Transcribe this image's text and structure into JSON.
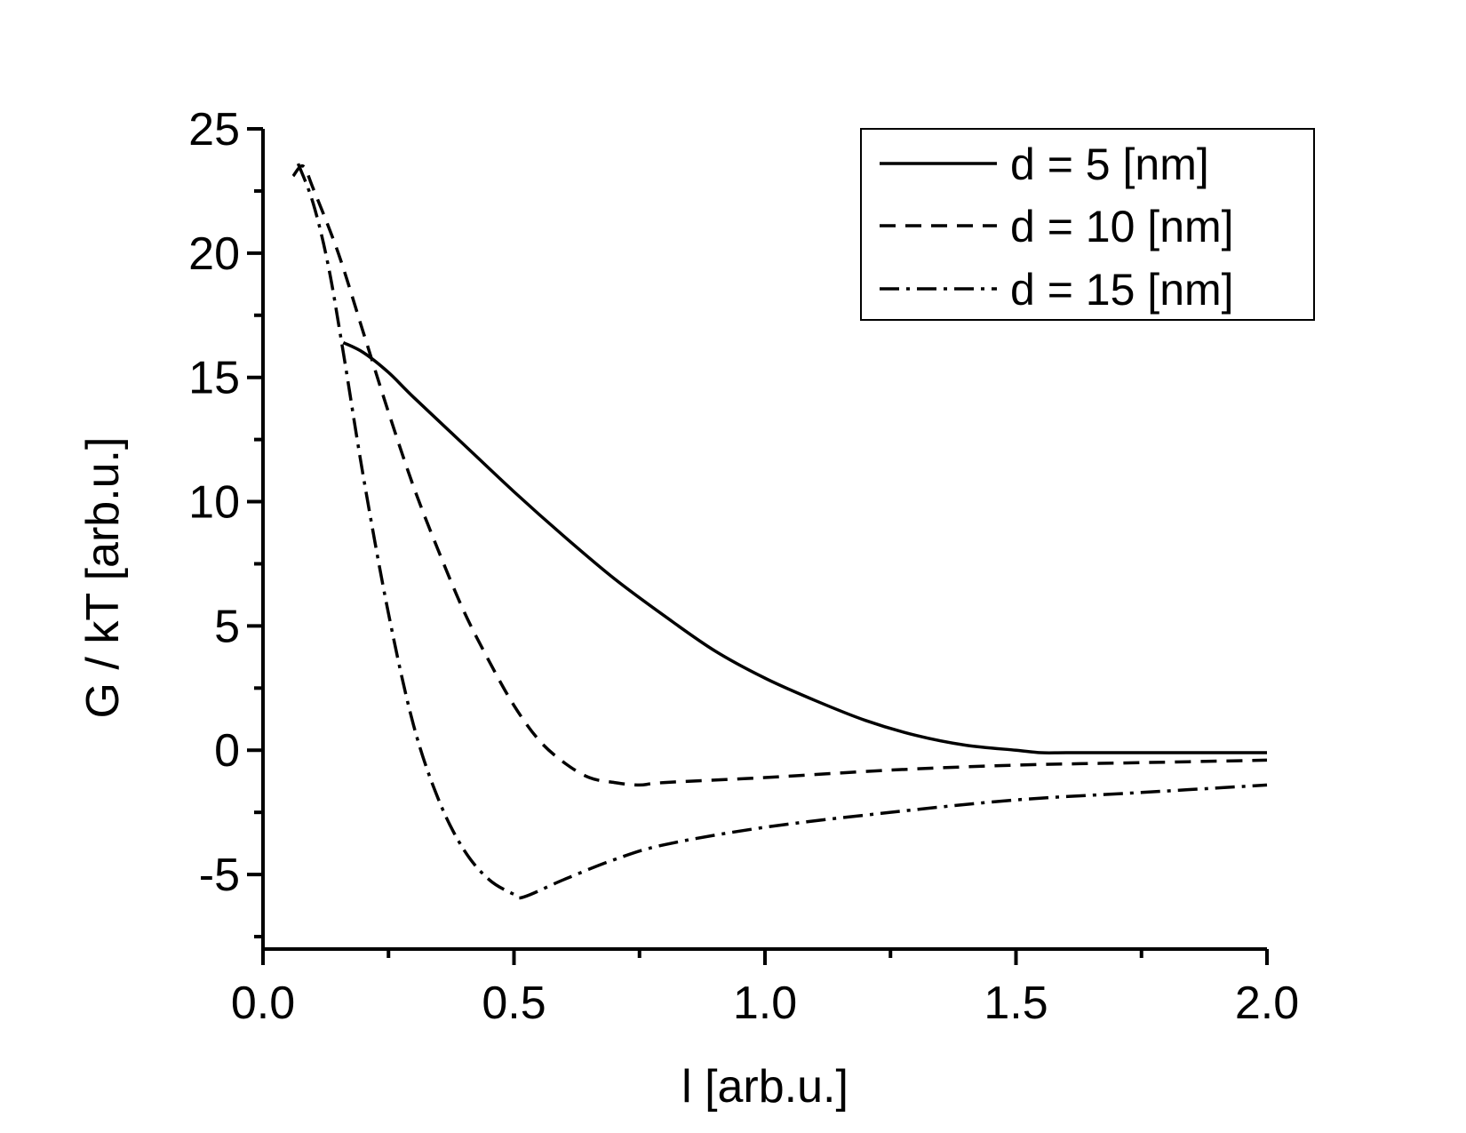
{
  "chart_data": {
    "type": "line",
    "title": "",
    "xlabel": "l [arb.u.]",
    "ylabel": "G / kT [arb.u.]",
    "xlim": [
      0.0,
      2.0
    ],
    "ylim": [
      -8,
      25
    ],
    "x_ticks": [
      0.0,
      0.5,
      1.0,
      1.5,
      2.0
    ],
    "x_tick_labels": [
      "0.0",
      "0.5",
      "1.0",
      "1.5",
      "2.0"
    ],
    "x_minor_ticks": [
      0.25,
      0.75,
      1.25,
      1.75
    ],
    "y_ticks": [
      -5,
      0,
      5,
      10,
      15,
      20,
      25
    ],
    "y_tick_labels": [
      "-5",
      "0",
      "5",
      "10",
      "15",
      "20",
      "25"
    ],
    "y_minor_ticks": [
      -7.5,
      -2.5,
      2.5,
      7.5,
      12.5,
      17.5,
      22.5
    ],
    "grid": false,
    "legend_position": "top-right",
    "series": [
      {
        "name": "d = 5 [nm]",
        "style": "solid",
        "x": [
          0.16,
          0.2,
          0.25,
          0.3,
          0.4,
          0.5,
          0.6,
          0.7,
          0.8,
          0.9,
          1.0,
          1.1,
          1.2,
          1.3,
          1.4,
          1.5,
          1.55,
          1.6,
          1.7,
          1.8,
          1.9,
          2.0
        ],
        "y": [
          16.4,
          16.0,
          15.2,
          14.2,
          12.3,
          10.4,
          8.6,
          6.9,
          5.4,
          4.0,
          2.9,
          2.0,
          1.2,
          0.6,
          0.2,
          0.0,
          -0.1,
          -0.1,
          -0.1,
          -0.1,
          -0.1,
          -0.1
        ]
      },
      {
        "name": "d = 10 [nm]",
        "style": "dashed",
        "x": [
          0.06,
          0.08,
          0.1,
          0.15,
          0.2,
          0.25,
          0.3,
          0.35,
          0.4,
          0.45,
          0.5,
          0.55,
          0.6,
          0.65,
          0.7,
          0.75,
          0.8,
          1.0,
          1.25,
          1.5,
          1.75,
          2.0
        ],
        "y": [
          23.1,
          23.5,
          22.6,
          20.0,
          16.8,
          13.6,
          10.6,
          8.0,
          5.6,
          3.6,
          1.8,
          0.4,
          -0.5,
          -1.1,
          -1.3,
          -1.4,
          -1.3,
          -1.1,
          -0.8,
          -0.6,
          -0.5,
          -0.4
        ]
      },
      {
        "name": "d = 15 [nm]",
        "style": "dashdot",
        "x": [
          0.07,
          0.1,
          0.13,
          0.16,
          0.2,
          0.25,
          0.3,
          0.35,
          0.4,
          0.45,
          0.5,
          0.52,
          0.6,
          0.7,
          0.8,
          1.0,
          1.25,
          1.5,
          1.75,
          2.0
        ],
        "y": [
          23.6,
          22.0,
          19.5,
          16.0,
          11.0,
          5.5,
          1.0,
          -2.0,
          -4.0,
          -5.2,
          -5.8,
          -5.9,
          -5.2,
          -4.4,
          -3.8,
          -3.1,
          -2.5,
          -2.0,
          -1.7,
          -1.4
        ]
      }
    ]
  }
}
